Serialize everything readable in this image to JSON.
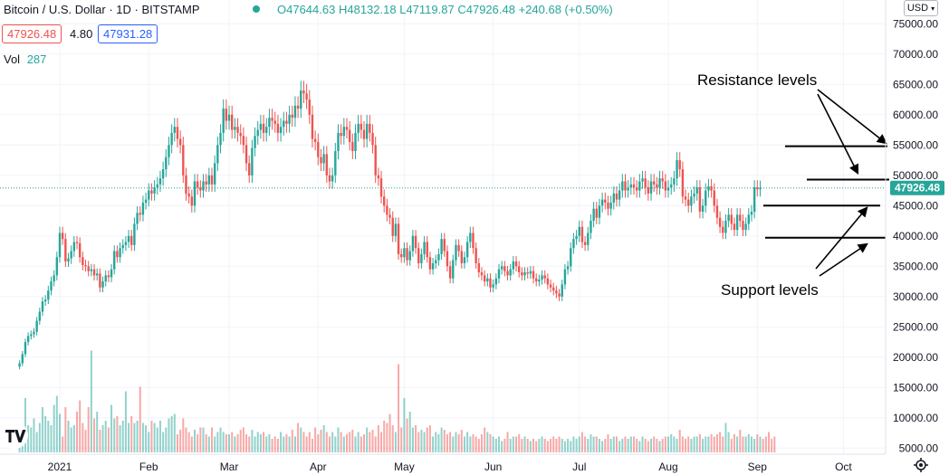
{
  "header": {
    "symbol": "Bitcoin / U.S. Dollar",
    "sep1": "·",
    "interval": "1D",
    "sep2": "·",
    "exchange": "BITSTAMP",
    "open": "O47644.63",
    "high": "H48132.18",
    "low": "L47119.87",
    "close": "C47926.48",
    "change": "+240.68 (+0.50%)",
    "bid": "47926.48",
    "spread": "4.80",
    "ask": "47931.28",
    "vol_label": "Vol",
    "vol_value": "287",
    "currency": "USD"
  },
  "annotations": {
    "resistance": "Resistance levels",
    "support": "Support levels"
  },
  "logo_text": "TV",
  "colors": {
    "up": "#26a69a",
    "down": "#ef5350",
    "line": "#000000",
    "price_line": "#26a69a"
  },
  "icons": {
    "live": "dot-icon",
    "settings": "gear-icon",
    "dropdown": "chevron-down-icon"
  },
  "chart_data": {
    "type": "candlestick",
    "x_tick_labels": [
      "2021",
      "Feb",
      "Mar",
      "Apr",
      "May",
      "Jun",
      "Jul",
      "Aug",
      "Sep",
      "Oct"
    ],
    "x_tick_days": [
      0,
      31,
      59,
      90,
      120,
      151,
      181,
      212,
      243,
      273
    ],
    "y_tick_labels": [
      "75000.00",
      "70000.00",
      "65000.00",
      "60000.00",
      "55000.00",
      "50000.00",
      "45000.00",
      "40000.00",
      "35000.00",
      "30000.00",
      "25000.00",
      "20000.00",
      "15000.00",
      "10000.00",
      "5000.00"
    ],
    "ylim": [
      3000,
      77500
    ],
    "last_price": 47926.48,
    "last_price_label": "47926.48",
    "resistance_levels": [
      54800,
      49300
    ],
    "support_levels": [
      45000,
      39700
    ],
    "close_series": {
      "start_day": -14,
      "values": [
        19000,
        20500,
        22500,
        23500,
        23800,
        24200,
        26000,
        27500,
        29200,
        29500,
        31000,
        32500,
        33500,
        36500,
        40500,
        39500,
        35800,
        36300,
        37500,
        39000,
        38800,
        36500,
        35200,
        35000,
        34200,
        34500,
        33500,
        33800,
        31500,
        32500,
        33500,
        33200,
        34500,
        37500,
        36500,
        38000,
        38500,
        39000,
        40000,
        38500,
        42000,
        43800,
        43500,
        45500,
        46000,
        47500,
        47000,
        48000,
        48500,
        49500,
        51000,
        53000,
        55000,
        57000,
        58000,
        56000,
        55000,
        50000,
        47000,
        46500,
        45000,
        49000,
        48000,
        47500,
        49000,
        48500,
        50000,
        48500,
        52000,
        55000,
        57000,
        61000,
        59000,
        60000,
        57500,
        58000,
        57000,
        56500,
        55000,
        52000,
        50000,
        54500,
        56500,
        57500,
        58500,
        57000,
        58000,
        59500,
        59000,
        58500,
        57000,
        58000,
        59000,
        58500,
        60000,
        59500,
        61500,
        61000,
        64000,
        63500,
        62500,
        60000,
        56000,
        55500,
        53000,
        52000,
        53500,
        50000,
        49000,
        50000,
        54000,
        57000,
        56500,
        58000,
        57500,
        55500,
        54000,
        57000,
        58500,
        57500,
        56000,
        58500,
        57000,
        55000,
        50000,
        49500,
        46500,
        45000,
        43500,
        43000,
        40000,
        42000,
        37000,
        36500,
        38000,
        36000,
        37500,
        40000,
        38000,
        35500,
        37000,
        39000,
        36500,
        34500,
        35500,
        36000,
        37000,
        39500,
        37500,
        35000,
        33000,
        36000,
        38500,
        37500,
        35500,
        36500,
        39000,
        40500,
        38000,
        35500,
        34000,
        33500,
        32500,
        33000,
        31500,
        32000,
        33000,
        34500,
        35000,
        34200,
        33500,
        34500,
        35800,
        35000,
        34000,
        33500,
        34000,
        33800,
        34200,
        33000,
        32500,
        32800,
        33500,
        33000,
        32000,
        31500,
        31000,
        30500,
        30000,
        32000,
        34500,
        35000,
        38000,
        39500,
        40000,
        41500,
        39000,
        38500,
        40500,
        42500,
        44500,
        43000,
        45000,
        46000,
        45500,
        44500,
        45500,
        47000,
        46000,
        47500,
        49000,
        47500,
        48000,
        48500,
        48000,
        47500,
        49000,
        49500,
        48000,
        47000,
        49000,
        48500,
        48000,
        49500,
        49000,
        47500,
        48000,
        48500,
        49500,
        52500,
        51000,
        46500,
        46000,
        45000,
        46500,
        47000,
        48000,
        44000,
        45000,
        47500,
        48200,
        47500,
        45000,
        43000,
        41500,
        40500,
        42500,
        43500,
        42000,
        41000,
        43500,
        42500,
        41000,
        42000,
        43500,
        44000,
        48000,
        47700,
        47926
      ]
    },
    "volume_series": {
      "start_day": -14,
      "values": [
        3500,
        4500,
        12000,
        6000,
        5500,
        7500,
        4500,
        6500,
        10000,
        8000,
        7000,
        6000,
        10500,
        12500,
        8500,
        3500,
        10000,
        7000,
        5500,
        6000,
        9000,
        11500,
        6500,
        5000,
        10000,
        22500,
        7500,
        9000,
        5000,
        6000,
        7000,
        5500,
        10500,
        7500,
        8000,
        6000,
        7000,
        13500,
        6500,
        8000,
        6500,
        7000,
        14500,
        6500,
        6000,
        4500,
        7000,
        6500,
        5500,
        7000,
        4500,
        5500,
        7500,
        8000,
        8500,
        4000,
        5000,
        7500,
        5500,
        4500,
        3500,
        5000,
        4000,
        5500,
        5500,
        4000,
        3500,
        5500,
        3500,
        4500,
        5500,
        4500,
        4000,
        4000,
        4500,
        3500,
        4000,
        5000,
        5500,
        4000,
        3500,
        5000,
        3500,
        4500,
        4000,
        4500,
        3500,
        4000,
        3000,
        3500,
        3000,
        4500,
        3500,
        4000,
        3500,
        5000,
        3500,
        6500,
        5500,
        4500,
        3500,
        4500,
        3000,
        5500,
        4000,
        5000,
        6000,
        4500,
        3500,
        4500,
        3500,
        5500,
        4500,
        3500,
        4000,
        4500,
        5000,
        3500,
        4500,
        3500,
        4000,
        5500,
        4500,
        5000,
        3500,
        6000,
        4500,
        7000,
        6500,
        8500,
        6000,
        4500,
        19500,
        5500,
        12000,
        7500,
        9000,
        5500,
        6000,
        4500,
        5000,
        4500,
        5500,
        6000,
        3500,
        4500,
        4000,
        5500,
        5000,
        4000,
        4500,
        3500,
        4500,
        4000,
        5000,
        3500,
        4500,
        3500,
        4000,
        3500,
        3000,
        4000,
        5500,
        4500,
        4000,
        3500,
        3000,
        3500,
        2500,
        3000,
        4500,
        3000,
        3500,
        3500,
        4000,
        3000,
        3500,
        3000,
        2500,
        3000,
        2500,
        3000,
        3500,
        3000,
        2500,
        3000,
        3500,
        3000,
        3500,
        3000,
        2500,
        3000,
        2500,
        3500,
        3000,
        3500,
        4500,
        3500,
        3000,
        4000,
        3500,
        3500,
        3000,
        2500,
        3000,
        4000,
        3000,
        3500,
        3500,
        2500,
        3000,
        3500,
        3000,
        3500,
        3500,
        3000,
        2500,
        3500,
        3000,
        2500,
        3000,
        3500,
        3000,
        2500,
        3000,
        3500,
        3500,
        4000,
        3500,
        3000,
        5000,
        3500,
        3000,
        3500,
        3000,
        3500,
        3500,
        4000,
        3000,
        3500,
        3500,
        4000,
        3500,
        4000,
        4500,
        3500,
        6500,
        4500,
        3000,
        4000,
        3500,
        5000,
        3500,
        3500,
        4000,
        3500,
        3000,
        4000,
        3500,
        3000,
        3500,
        4500,
        3000,
        3500
      ]
    }
  }
}
